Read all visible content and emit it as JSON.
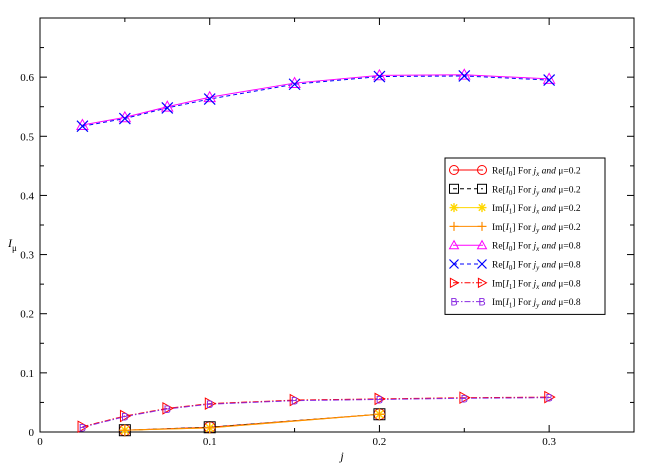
{
  "chart_data": {
    "type": "line",
    "xlabel": "j",
    "ylabel": "I",
    "ylabel_sub": "μ",
    "xlim": [
      0,
      0.35
    ],
    "ylim": [
      0,
      0.7
    ],
    "xticks": [
      0,
      0.1,
      0.2,
      0.3
    ],
    "xtick_labels": [
      "0",
      "0.1",
      "0.2",
      "0.3"
    ],
    "yticks": [
      0,
      0.1,
      0.2,
      0.3,
      0.4,
      0.5,
      0.6
    ],
    "ytick_labels": [
      "0",
      "0.1",
      "0.2",
      "0.3",
      "0.4",
      "0.5",
      "0.6"
    ],
    "grid": false,
    "legend_position": "center-right",
    "series": [
      {
        "name": "Re[I0] For jx and μ=0.2",
        "label_parts": [
          "Re[",
          "I",
          "0",
          "] For ",
          "j",
          "x",
          " and ",
          "μ",
          "=0.2"
        ],
        "color": "#ff0000",
        "marker": "circle",
        "dash": "solid",
        "x": [
          0.05,
          0.1,
          0.2
        ],
        "y": [
          0.003,
          0.008,
          0.03
        ]
      },
      {
        "name": "Re[I0] For jy and μ=0.2",
        "label_parts": [
          "Re[",
          "I",
          "0",
          "] For ",
          "j",
          "y",
          " and ",
          "μ",
          "=0.2"
        ],
        "color": "#000000",
        "marker": "square",
        "dash": "dashed",
        "x": [
          0.05,
          0.1,
          0.2
        ],
        "y": [
          0.003,
          0.008,
          0.03
        ]
      },
      {
        "name": "Im[I1] For jx and μ=0.2",
        "label_parts": [
          "Im[",
          "I",
          "1",
          "] For ",
          "j",
          "x",
          " and ",
          "μ",
          "=0.2"
        ],
        "color": "#ffd700",
        "marker": "star",
        "dash": "solid",
        "x": [
          0.05,
          0.1,
          0.2
        ],
        "y": [
          0.003,
          0.007,
          0.03
        ]
      },
      {
        "name": "Im[I1] For jy and μ=0.2",
        "label_parts": [
          "Im[",
          "I",
          "1",
          "] For ",
          "j",
          "y",
          " and ",
          "μ",
          "=0.2"
        ],
        "color": "#ff8c00",
        "marker": "plus",
        "dash": "solid",
        "x": [
          0.05,
          0.1,
          0.2
        ],
        "y": [
          0.003,
          0.007,
          0.03
        ]
      },
      {
        "name": "Re[I0] For jx and μ=0.8",
        "label_parts": [
          "Re[",
          "I",
          "0",
          "] For ",
          "j",
          "x",
          " and ",
          "μ",
          "=0.8"
        ],
        "color": "#ff00ff",
        "marker": "triangle-up",
        "dash": "solid",
        "x": [
          0.025,
          0.05,
          0.075,
          0.1,
          0.15,
          0.2,
          0.25,
          0.3
        ],
        "y": [
          0.519,
          0.532,
          0.55,
          0.566,
          0.59,
          0.603,
          0.604,
          0.597
        ]
      },
      {
        "name": "Re[I0] For jy and μ=0.8",
        "label_parts": [
          "Re[",
          "I",
          "0",
          "] For ",
          "j",
          "y",
          " and ",
          "μ",
          "=0.8"
        ],
        "color": "#0000ff",
        "marker": "x",
        "dash": "dashed",
        "x": [
          0.025,
          0.05,
          0.075,
          0.1,
          0.15,
          0.2,
          0.25,
          0.3
        ],
        "y": [
          0.517,
          0.53,
          0.548,
          0.563,
          0.588,
          0.601,
          0.602,
          0.595
        ]
      },
      {
        "name": "Im[I1] For jx and μ=0.8",
        "label_parts": [
          "Im[",
          "I",
          "1",
          "] For ",
          "j",
          "x",
          " and ",
          "μ",
          "=0.8"
        ],
        "color": "#ff0000",
        "marker": "triangle-right",
        "dash": "dashdot",
        "x": [
          0.025,
          0.05,
          0.075,
          0.1,
          0.15,
          0.2,
          0.25,
          0.3
        ],
        "y": [
          0.009,
          0.027,
          0.04,
          0.048,
          0.054,
          0.056,
          0.058,
          0.059
        ]
      },
      {
        "name": "Im[I1] For jy and μ=0.8",
        "label_parts": [
          "Im[",
          "I",
          "1",
          "] For ",
          "j",
          "y",
          " and ",
          "μ",
          "=0.8"
        ],
        "color": "#8a2be2",
        "marker": "letter-B",
        "dash": "dashdot",
        "x": [
          0.025,
          0.05,
          0.075,
          0.1,
          0.15,
          0.2,
          0.25,
          0.3
        ],
        "y": [
          0.008,
          0.026,
          0.039,
          0.047,
          0.053,
          0.055,
          0.057,
          0.058
        ]
      }
    ]
  }
}
